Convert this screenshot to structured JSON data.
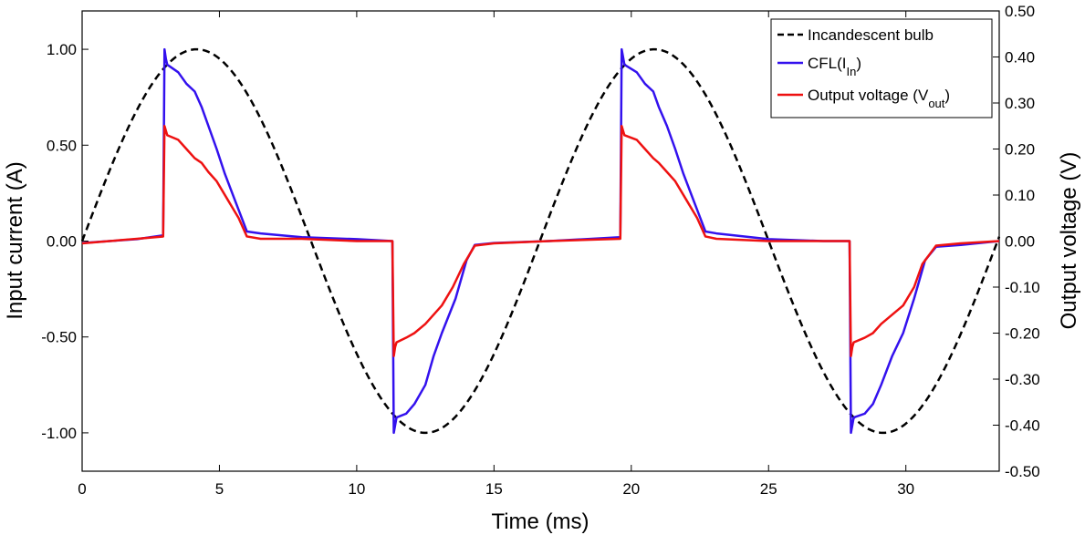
{
  "chart_data": {
    "type": "line",
    "xlabel": "Time (ms)",
    "ylabel": "Input current (A)",
    "y2label": "Output voltage (V)",
    "xlim": [
      0,
      33.4
    ],
    "ylim": [
      -1.2,
      1.2
    ],
    "y2lim": [
      -0.5,
      0.5
    ],
    "xticks": [
      0,
      5,
      10,
      15,
      20,
      25,
      30
    ],
    "yticks": [
      -1.0,
      -0.5,
      0.0,
      0.5,
      1.0
    ],
    "y2ticks": [
      -0.5,
      -0.4,
      -0.3,
      -0.2,
      -0.1,
      0.0,
      0.1,
      0.2,
      0.3,
      0.4,
      0.5
    ],
    "ytick_labels": [
      "-1.00",
      "-0.50",
      "0.00",
      "0.50",
      "1.00"
    ],
    "y2tick_labels": [
      "-0.50",
      "-0.40",
      "-0.30",
      "-0.20",
      "-0.10",
      "0.00",
      "0.10",
      "0.20",
      "0.30",
      "0.40",
      "0.50"
    ],
    "grid": false,
    "legend": {
      "position": "top-right",
      "entries": [
        {
          "id": "incandescent",
          "base": "Incandescent bulb",
          "sub": "",
          "suffix": ""
        },
        {
          "id": "cfl",
          "base": "CFL(I",
          "sub": "In",
          "suffix": ")"
        },
        {
          "id": "vout",
          "base": "Output voltage (V",
          "sub": "out",
          "suffix": ")"
        }
      ]
    },
    "series": [
      {
        "name": "Incandescent bulb",
        "axis": "left",
        "color": "#000000",
        "style": "dashed",
        "period_ms": 16.67,
        "amplitude": 1.0,
        "description_formula": "I = sin(2*pi*t/16.67)"
      },
      {
        "name": "CFL(I_In)",
        "axis": "left",
        "color": "#3311ee",
        "style": "solid",
        "x": [
          0,
          1,
          2,
          2.95,
          3.0,
          3.05,
          3.1,
          3.5,
          3.8,
          4.1,
          4.35,
          4.6,
          4.9,
          5.2,
          5.6,
          6.0,
          6.5,
          8,
          10,
          11.3,
          11.35,
          11.4,
          11.45,
          11.8,
          12.1,
          12.5,
          12.8,
          13.1,
          13.6,
          14.0,
          14.3,
          15,
          17,
          19.6,
          19.65,
          19.7,
          19.75,
          20.2,
          20.5,
          20.8,
          21.0,
          21.3,
          21.6,
          21.9,
          22.3,
          22.7,
          23.1,
          25,
          27,
          27.95,
          28.0,
          28.05,
          28.1,
          28.5,
          28.8,
          29.1,
          29.5,
          29.9,
          30.3,
          30.7,
          31.1,
          32,
          33.4
        ],
        "y": [
          -0.01,
          0.0,
          0.01,
          0.03,
          1.0,
          0.95,
          0.92,
          0.88,
          0.82,
          0.78,
          0.7,
          0.6,
          0.48,
          0.35,
          0.2,
          0.05,
          0.04,
          0.02,
          0.01,
          0.0,
          -1.0,
          -0.96,
          -0.92,
          -0.9,
          -0.85,
          -0.75,
          -0.6,
          -0.48,
          -0.3,
          -0.1,
          -0.02,
          -0.01,
          0.0,
          0.02,
          1.0,
          0.96,
          0.92,
          0.88,
          0.82,
          0.78,
          0.7,
          0.6,
          0.48,
          0.35,
          0.2,
          0.05,
          0.04,
          0.01,
          0.0,
          0.0,
          -1.0,
          -0.96,
          -0.92,
          -0.9,
          -0.85,
          -0.75,
          -0.6,
          -0.48,
          -0.3,
          -0.1,
          -0.03,
          -0.02,
          0.0
        ]
      },
      {
        "name": "Output voltage (V_out)",
        "axis": "right",
        "color": "#ee1111",
        "style": "solid",
        "x": [
          0,
          1,
          2,
          2.95,
          3.0,
          3.05,
          3.1,
          3.5,
          3.8,
          4.1,
          4.35,
          4.6,
          4.9,
          5.3,
          5.7,
          6.0,
          6.5,
          8,
          10,
          11.3,
          11.35,
          11.4,
          11.45,
          11.8,
          12.1,
          12.5,
          12.8,
          13.1,
          13.5,
          13.9,
          14.3,
          15,
          17,
          19.6,
          19.65,
          19.7,
          19.75,
          20.2,
          20.5,
          20.8,
          21.0,
          21.3,
          21.6,
          22.0,
          22.4,
          22.7,
          23.1,
          25,
          27,
          27.95,
          28.0,
          28.05,
          28.1,
          28.5,
          28.8,
          29.1,
          29.5,
          29.9,
          30.3,
          30.6,
          31.1,
          32,
          33.4
        ],
        "y": [
          -0.005,
          0.0,
          0.005,
          0.01,
          0.25,
          0.24,
          0.23,
          0.22,
          0.2,
          0.18,
          0.17,
          0.15,
          0.13,
          0.09,
          0.05,
          0.01,
          0.005,
          0.005,
          0.0,
          0.0,
          -0.25,
          -0.23,
          -0.22,
          -0.21,
          -0.2,
          -0.18,
          -0.16,
          -0.14,
          -0.1,
          -0.05,
          -0.01,
          -0.005,
          0.0,
          0.005,
          0.25,
          0.24,
          0.23,
          0.22,
          0.2,
          0.18,
          0.17,
          0.15,
          0.13,
          0.09,
          0.05,
          0.01,
          0.005,
          0.0,
          0.0,
          0.0,
          -0.25,
          -0.23,
          -0.22,
          -0.21,
          -0.2,
          -0.18,
          -0.16,
          -0.14,
          -0.1,
          -0.05,
          -0.01,
          -0.005,
          0.0
        ]
      }
    ]
  }
}
